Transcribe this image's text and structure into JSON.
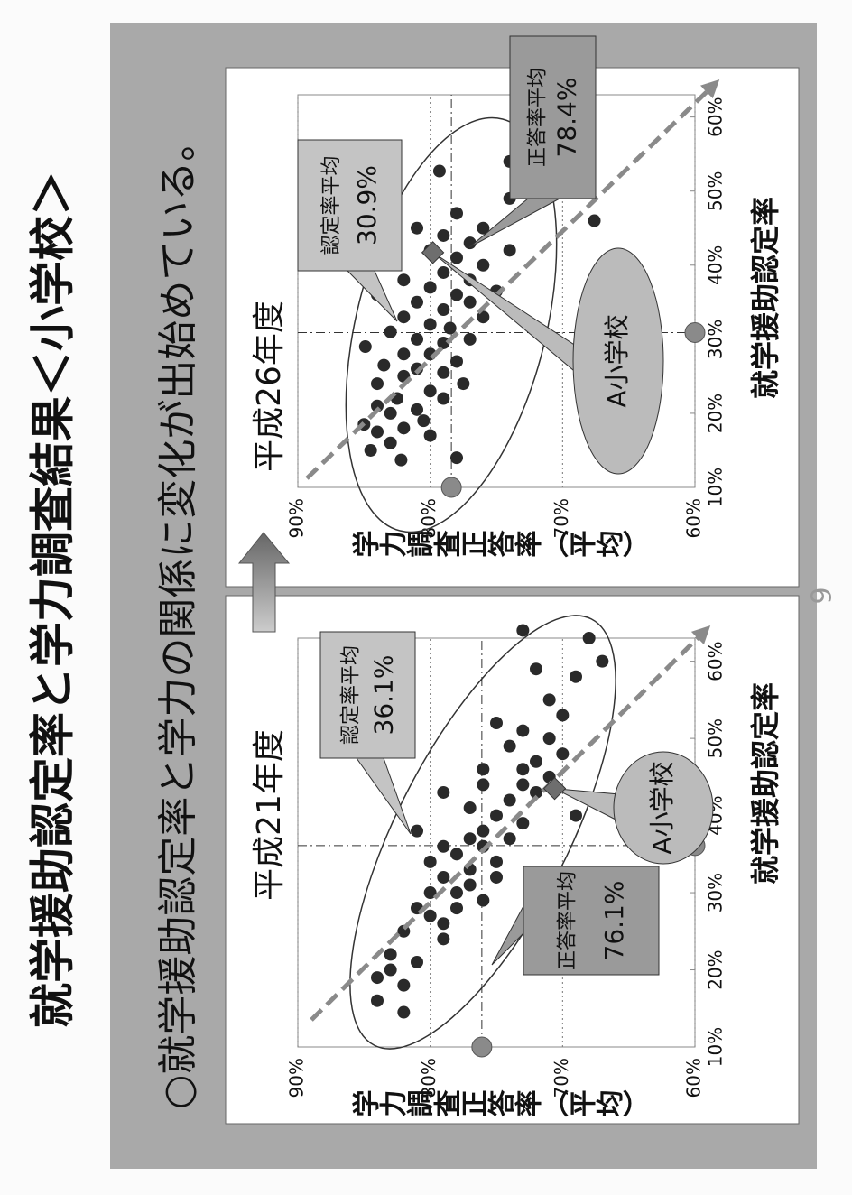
{
  "page": {
    "title": "就学援助認定率と学力調査結果＜小学校＞",
    "subtitle": "○就学援助認定率と学力の関係に変化が出始めている。",
    "page_number": "9"
  },
  "chart_data": [
    {
      "type": "scatter",
      "title": "平成21年度",
      "x_label": "就学援助認定率",
      "y_label": "学力調査正答率（平均）",
      "xlim": [
        10,
        63
      ],
      "ylim": [
        60,
        90
      ],
      "xticks": [
        {
          "value": 10,
          "label": "10%"
        },
        {
          "value": 20,
          "label": "20%"
        },
        {
          "value": 30,
          "label": "30%"
        },
        {
          "value": 40,
          "label": "40%"
        },
        {
          "value": 50,
          "label": "50%"
        },
        {
          "value": 60,
          "label": "60%"
        }
      ],
      "yticks": [
        {
          "value": 90,
          "label": "90%"
        },
        {
          "value": 80,
          "label": "80%"
        },
        {
          "value": 70,
          "label": "70%"
        },
        {
          "value": 60,
          "label": "60%"
        }
      ],
      "grid": true,
      "color": "#2a2a2a",
      "x": [
        14.5,
        16,
        18,
        19,
        20,
        21,
        22,
        24,
        25,
        26,
        27,
        28,
        28,
        29,
        30,
        30,
        31,
        32,
        32,
        33,
        34,
        34,
        35,
        36,
        36,
        37,
        37,
        38,
        39,
        40,
        41,
        42,
        43,
        44,
        44,
        45,
        46,
        46,
        47,
        48,
        49,
        50,
        51,
        52,
        53,
        55,
        58,
        59,
        60,
        63,
        64,
        43,
        38,
        40
      ],
      "y": [
        82,
        84,
        82,
        84,
        83,
        81,
        83,
        79,
        82,
        79,
        80,
        78,
        81,
        76,
        78,
        80,
        77,
        75,
        79,
        77,
        80,
        75,
        78,
        76,
        79,
        74,
        77,
        76,
        73,
        75,
        77,
        74,
        72,
        76,
        73,
        71,
        73,
        76,
        72,
        70,
        74,
        71,
        73,
        75,
        70,
        71,
        69,
        72,
        67,
        68,
        73,
        79,
        81,
        69
      ],
      "highlight": {
        "name": "A小学校",
        "x": 43.5,
        "y": 70.6,
        "color": "#6e6e6e"
      },
      "mean_x": {
        "label": "認定率平均",
        "value": 36.1,
        "value_label": "36.1%"
      },
      "mean_y": {
        "label": "正答率平均",
        "value": 76.1,
        "value_label": "76.1%"
      }
    },
    {
      "type": "scatter",
      "title": "平成26年度",
      "x_label": "就学援助認定率",
      "y_label": "学力調査正答率（平均）",
      "xlim": [
        10,
        63
      ],
      "ylim": [
        60,
        90
      ],
      "xticks": [
        {
          "value": 10,
          "label": "10%"
        },
        {
          "value": 20,
          "label": "20%"
        },
        {
          "value": 30,
          "label": "30%"
        },
        {
          "value": 40,
          "label": "40%"
        },
        {
          "value": 50,
          "label": "50%"
        },
        {
          "value": 60,
          "label": "60%"
        }
      ],
      "yticks": [
        {
          "value": 90,
          "label": "90%"
        },
        {
          "value": 80,
          "label": "80%"
        },
        {
          "value": 70,
          "label": "70%"
        },
        {
          "value": 60,
          "label": "60%"
        }
      ],
      "grid": true,
      "color": "#2a2a2a",
      "x": [
        13.7,
        14,
        15,
        16,
        17,
        17.5,
        18,
        18.5,
        19,
        20,
        20.5,
        21,
        22,
        22,
        23,
        24,
        24,
        25,
        25.5,
        26,
        26.5,
        27,
        28,
        28,
        29,
        29.5,
        30,
        30,
        31,
        31.5,
        32,
        33,
        33,
        34,
        35,
        35,
        36,
        36.5,
        37,
        38,
        38,
        39,
        40,
        41,
        42,
        42,
        43,
        44,
        45,
        46,
        47,
        49,
        52.7,
        54,
        41,
        36,
        45
      ],
      "y": [
        82.2,
        78,
        84.5,
        83,
        80,
        84,
        82,
        85,
        80.5,
        83,
        81,
        84,
        79,
        82.5,
        80,
        84,
        77.5,
        82,
        79,
        81,
        83.5,
        78,
        80,
        82,
        84.9,
        79,
        81,
        77,
        83,
        78.5,
        80,
        76,
        82,
        79,
        77,
        81,
        78,
        75,
        80,
        77,
        82,
        79,
        76,
        78,
        80,
        74,
        77,
        79,
        76,
        67.6,
        78,
        74,
        79.3,
        74,
        84,
        84,
        81
      ],
      "highlight": {
        "name": "A小学校",
        "x": 41.7,
        "y": 79.8,
        "color": "#6e6e6e"
      },
      "mean_x": {
        "label": "認定率平均",
        "value": 30.9,
        "value_label": "30.9%"
      },
      "mean_y": {
        "label": "正答率平均",
        "value": 78.4,
        "value_label": "78.4%"
      }
    }
  ]
}
